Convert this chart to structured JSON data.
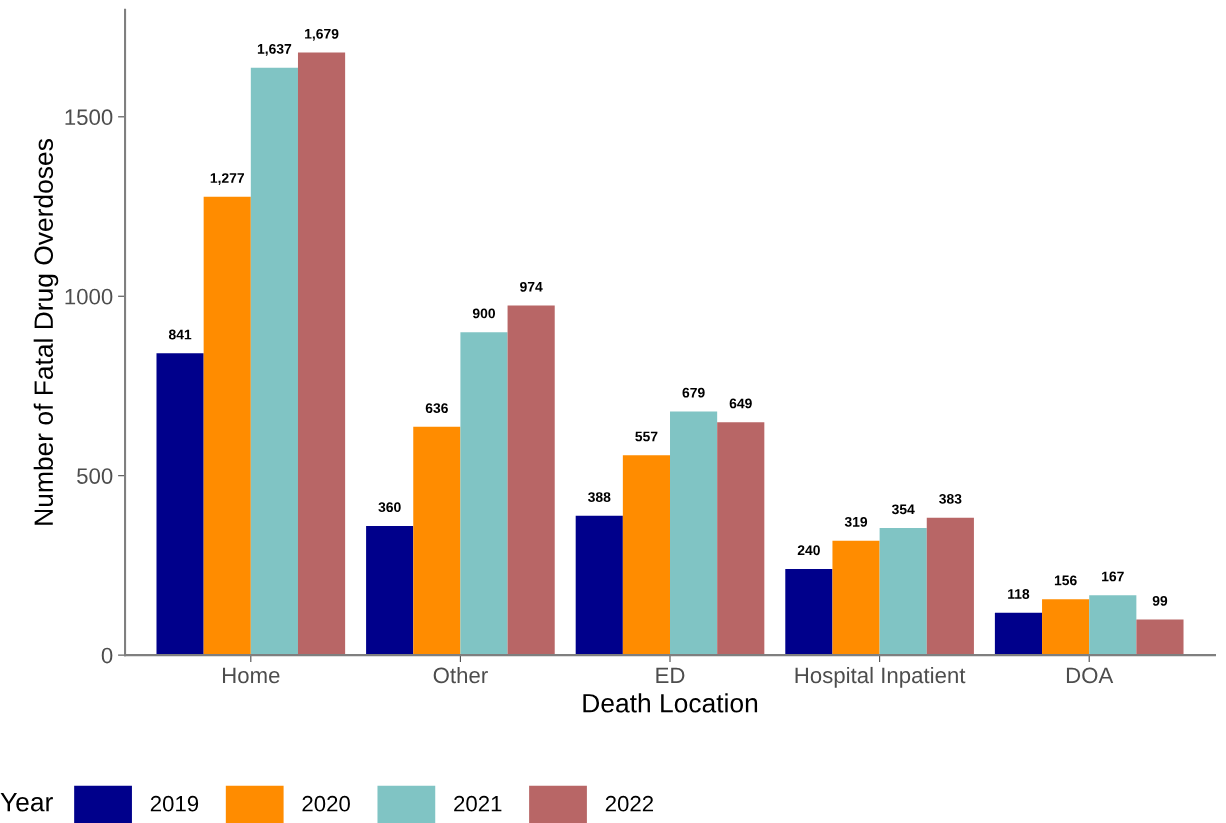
{
  "chart_data": {
    "type": "bar",
    "xlabel": "Death Location",
    "ylabel": "Number of Fatal Drug Overdoses",
    "legend_title": "Year",
    "legend": "bottom",
    "grid": false,
    "categories": [
      "Home",
      "Other",
      "ED",
      "Hospital Inpatient",
      "DOA"
    ],
    "ylim": [
      0,
      1798
    ],
    "yticks": [
      0,
      500,
      1000,
      1500
    ],
    "series": [
      {
        "name": "2019",
        "color": "#00008b",
        "values": [
          841,
          360,
          388,
          240,
          118
        ],
        "value_labels": [
          "841",
          "360",
          "388",
          "240",
          "118"
        ]
      },
      {
        "name": "2020",
        "color": "#ff8c00",
        "values": [
          1277,
          636,
          557,
          319,
          156
        ],
        "value_labels": [
          "1,277",
          "636",
          "557",
          "319",
          "156"
        ]
      },
      {
        "name": "2021",
        "color": "#80c4c4",
        "values": [
          1637,
          900,
          679,
          354,
          167
        ],
        "value_labels": [
          "1,637",
          "900",
          "679",
          "354",
          "167"
        ]
      },
      {
        "name": "2022",
        "color": "#b86666",
        "values": [
          1679,
          974,
          649,
          383,
          99
        ],
        "value_labels": [
          "1,679",
          "974",
          "649",
          "383",
          "99"
        ]
      }
    ]
  }
}
